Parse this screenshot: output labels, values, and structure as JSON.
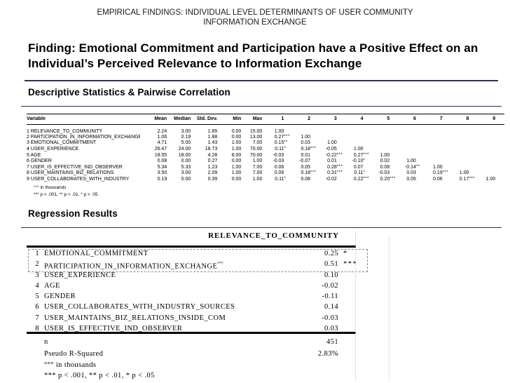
{
  "colors": {
    "accent_navy": "#30304f",
    "table_rule": "#000000",
    "highlight_dash_border": "#8a8a8a"
  },
  "slide": {
    "title": "EMPIRICAL FINDINGS: INDIVIDUAL LEVEL DETERMINANTS OF USER COMMUNITY INFORMATION EXCHANGE",
    "finding": "Finding: Emotional Commitment and Participation have a Positive Effect on an Individual’s Perceived Relevance to Information Exchange"
  },
  "descriptive": {
    "heading": "Descriptive Statistics & Pairwise Correlation",
    "columns": [
      "Variable",
      "Mean",
      "Median",
      "Std. Dev.",
      "Min",
      "Max",
      "1",
      "2",
      "3",
      "4",
      "5",
      "6",
      "7",
      "8",
      "9"
    ],
    "rows": [
      {
        "n": "1",
        "variable": "RELEVANCE_TO_COMMUNITY",
        "mean": "2.24",
        "median": "3.00",
        "std": "1.85",
        "min": "0.00",
        "max": "15.00",
        "corr": [
          "1.00"
        ]
      },
      {
        "n": "2",
        "variable": "PARTICIPATION_IN_INFORMATION_EXCHANGE",
        "mean": "1.06",
        "median": "0.19",
        "std": "1.88",
        "min": "0.00",
        "max": "13.00",
        "corr": [
          "0.27 ***",
          "1.00"
        ]
      },
      {
        "n": "3",
        "variable": "EMOTIONAL_COMMITMENT",
        "mean": "4.71",
        "median": "5.00",
        "std": "1.43",
        "min": "1.00",
        "max": "7.00",
        "corr": [
          "0.15 **",
          "0.03",
          "1.00"
        ]
      },
      {
        "n": "4",
        "variable": "USER_EXPERIENCE",
        "mean": "26.47",
        "median": "24.00",
        "std": "18.73",
        "min": "1.00",
        "max": "70.00",
        "corr": [
          "0.11 *",
          "0.18 ***",
          "-0.05",
          "1.00"
        ]
      },
      {
        "n": "5",
        "variable": "AGE",
        "mean": "18.55",
        "median": "18.00",
        "std": "4.28",
        "min": "8.00",
        "max": "70.00",
        "corr": [
          "-0.03",
          "0.01",
          "-0.22 ***",
          "0.27 ***",
          "1.00"
        ]
      },
      {
        "n": "6",
        "variable": "GENDER",
        "mean": "0.08",
        "median": "0.00",
        "std": "0.27",
        "min": "0.00",
        "max": "1.00",
        "corr": [
          "-0.03",
          "-0.07",
          "0.01",
          "-0.10 *",
          "0.02",
          "1.00"
        ]
      },
      {
        "n": "7",
        "variable": "USER_IS_EFFECTIVE_IND_OBSERVER",
        "mean": "5.34",
        "median": "5.33",
        "std": "1.23",
        "min": "1.00",
        "max": "7.00",
        "corr": [
          "0.06",
          "0.05",
          "0.28 ***",
          "0.07",
          "0.08",
          "-0.14 **",
          "1.00"
        ]
      },
      {
        "n": "8",
        "variable": "USER_MAINTAINS_BIZ_RELATIONS",
        "mean": "3.50",
        "median": "3.00",
        "std": "2.09",
        "min": "1.00",
        "max": "7.00",
        "corr": [
          "0.06",
          "0.18 ***",
          "0.31 ***",
          "0.11 *",
          "-0.03",
          "0.03",
          "0.19 ***",
          "1.00"
        ]
      },
      {
        "n": "9",
        "variable": "USER_COLLABORATES_WITH_INDUSTRY",
        "mean": "0.19",
        "median": "0.00",
        "std": "0.39",
        "min": "0.00",
        "max": "1.00",
        "corr": [
          "0.11 *",
          "0.08",
          "-0.02",
          "0.22 ***",
          "0.20 ***",
          "0.05",
          "0.06",
          "0.17 ***",
          "1.00"
        ]
      }
    ],
    "footnotes": [
      "°°° in thousands",
      "*** p < .001, ** p < .01, * p < .05"
    ]
  },
  "regression": {
    "heading": "Regression Results",
    "dv_header": "RELEVANCE_TO_COMMUNITY",
    "rows": [
      {
        "n": "1",
        "label": "EMOTIONAL_COMMITMENT",
        "sup": "",
        "coef": "0.25",
        "sig": "*",
        "highlight": true
      },
      {
        "n": "2",
        "label": "PARTICIPATION_IN_INFORMATION_EXCHANGE",
        "sup": "°°°",
        "coef": "0.51",
        "sig": "***",
        "highlight": true
      },
      {
        "n": "3",
        "label": "USER_EXPERIENCE",
        "sup": "",
        "coef": "0.10",
        "sig": "",
        "highlight": false
      },
      {
        "n": "4",
        "label": "AGE",
        "sup": "",
        "coef": "-0.02",
        "sig": "",
        "highlight": false
      },
      {
        "n": "5",
        "label": "GENDER",
        "sup": "",
        "coef": "-0.11",
        "sig": "",
        "highlight": false
      },
      {
        "n": "6",
        "label": "USER_COLLABORATES_WITH_INDUSTRY_SOURCES",
        "sup": "",
        "coef": "0.14",
        "sig": "",
        "highlight": false
      },
      {
        "n": "7",
        "label": "USER_MAINTAINS_BIZ_RELATIONS_INSIDE_COM",
        "sup": "",
        "coef": "-0.03",
        "sig": "",
        "highlight": false
      },
      {
        "n": "8",
        "label": "USER_IS_EFFECTIVE_IND_OBSERVER",
        "sup": "",
        "coef": "0.03",
        "sig": "",
        "highlight": false
      }
    ],
    "stats": [
      {
        "label": "n",
        "value": "451"
      },
      {
        "label": "Pseudo R-Squared",
        "value": "2.83%"
      }
    ],
    "footnotes": [
      "°°° in thousands",
      "*** p < .001, ** p < .01, * p < .05"
    ]
  }
}
